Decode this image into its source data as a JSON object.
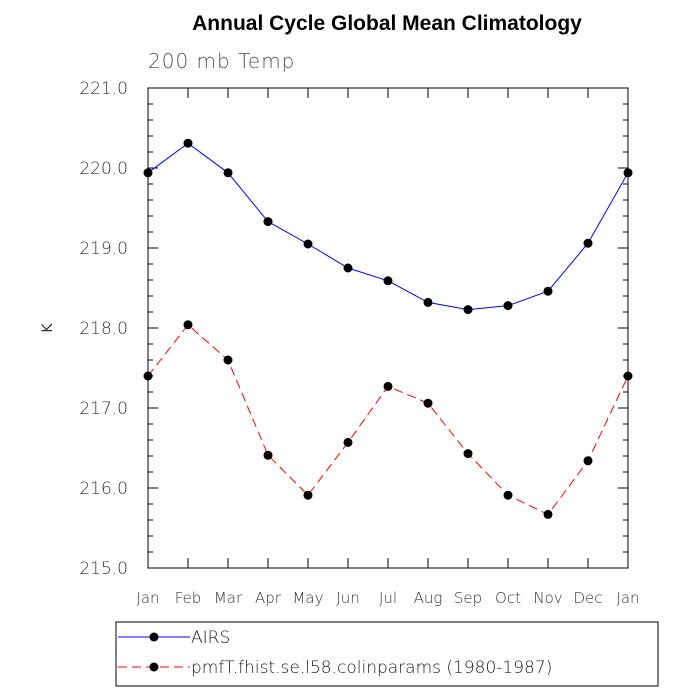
{
  "chart_data": {
    "type": "line",
    "title": "Annual Cycle Global Mean Climatology",
    "subtitle": "200 mb Temp",
    "xlabel": "",
    "ylabel": "K",
    "categories": [
      "Jan",
      "Feb",
      "Mar",
      "Apr",
      "May",
      "Jun",
      "Jul",
      "Aug",
      "Sep",
      "Oct",
      "Nov",
      "Dec",
      "Jan"
    ],
    "ylim": [
      215.0,
      221.0
    ],
    "yticks": [
      "215.0",
      "216.0",
      "217.0",
      "218.0",
      "219.0",
      "220.0",
      "221.0"
    ],
    "grid": false,
    "legend_position": "bottom",
    "series": [
      {
        "name": "AIRS",
        "color": "#0000ff",
        "style": "solid",
        "values": [
          219.94,
          220.31,
          219.94,
          219.33,
          219.05,
          218.75,
          218.59,
          218.32,
          218.23,
          218.28,
          218.46,
          219.06,
          219.94
        ]
      },
      {
        "name": "pmfT.fhist.se.l58.colinparams (1980-1987)",
        "color": "#ff0000",
        "style": "dashed",
        "values": [
          217.4,
          218.04,
          217.6,
          216.41,
          215.91,
          216.57,
          217.27,
          217.06,
          216.43,
          215.91,
          215.67,
          216.34,
          217.4
        ]
      }
    ]
  }
}
